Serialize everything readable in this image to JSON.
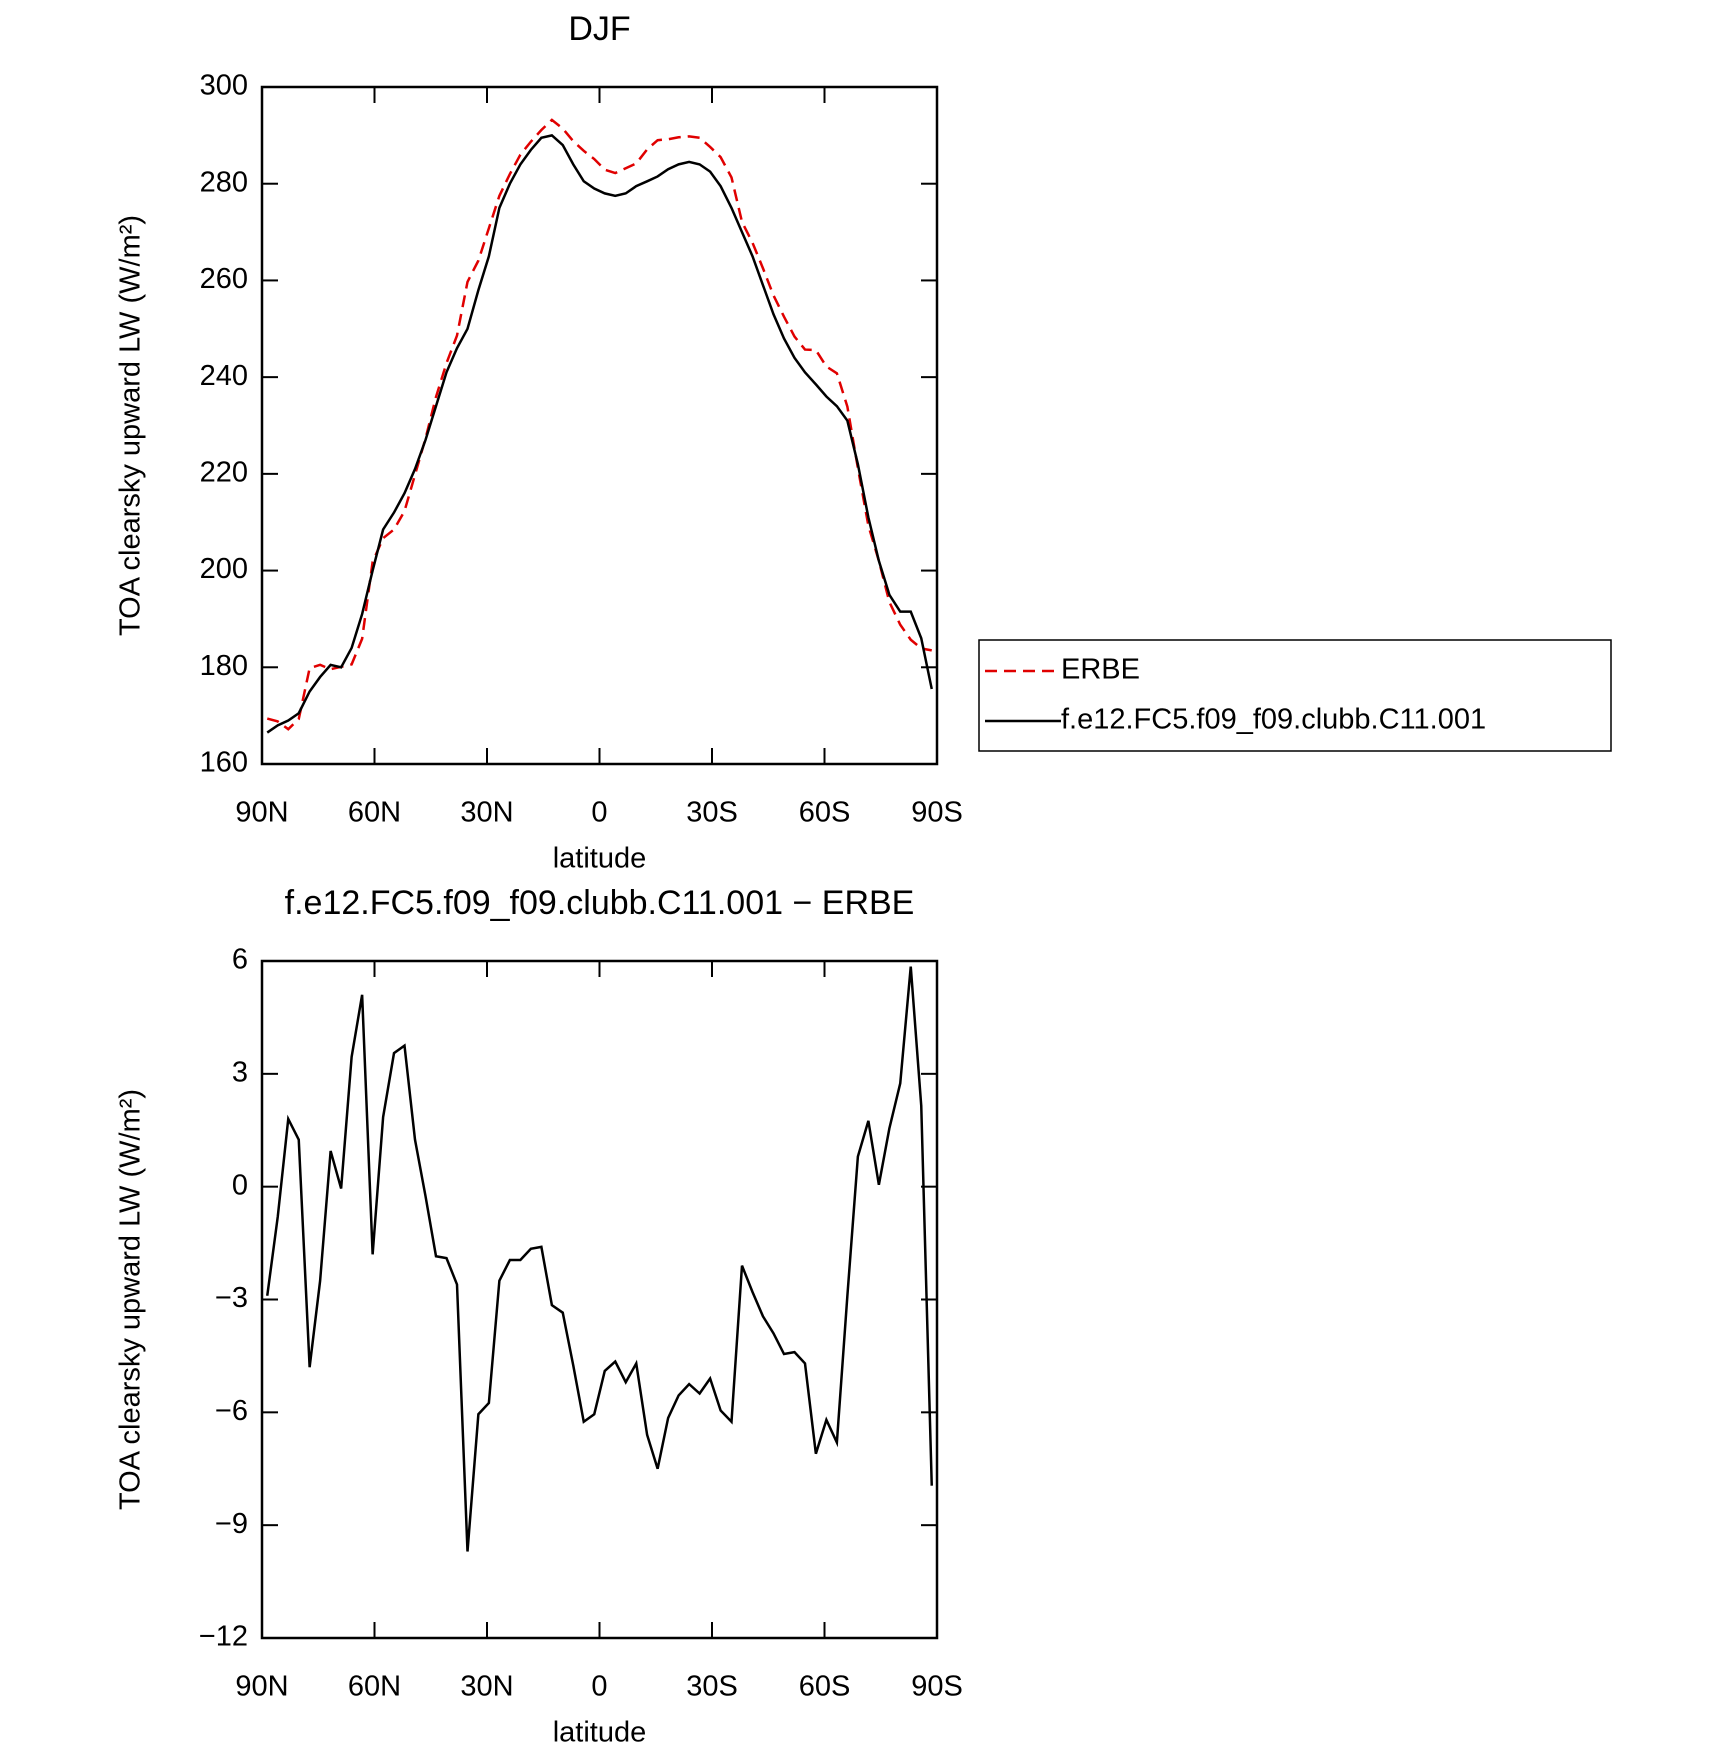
{
  "chart_data": [
    {
      "type": "line",
      "title": "DJF",
      "xlabel": "latitude",
      "ylabel": "TOA clearsky upward LW (W/m²)",
      "x": [
        88.6,
        85.8,
        83.0,
        80.2,
        77.3,
        74.5,
        71.7,
        68.9,
        66.1,
        63.3,
        60.5,
        57.7,
        54.8,
        52.0,
        49.2,
        46.4,
        43.6,
        40.8,
        38.0,
        35.2,
        32.3,
        29.5,
        26.7,
        23.9,
        21.1,
        18.3,
        15.5,
        12.7,
        9.8,
        7.0,
        4.2,
        1.4,
        -1.4,
        -4.2,
        -7.0,
        -9.8,
        -12.7,
        -15.5,
        -18.3,
        -21.1,
        -23.9,
        -26.7,
        -29.5,
        -32.3,
        -35.2,
        -38.0,
        -40.8,
        -43.6,
        -46.4,
        -49.2,
        -52.0,
        -54.8,
        -57.7,
        -60.5,
        -63.3,
        -66.1,
        -68.9,
        -71.7,
        -74.5,
        -77.3,
        -80.2,
        -83.0,
        -85.8,
        -88.6
      ],
      "series": [
        {
          "name": "ERBE",
          "color": "#e00000",
          "dash": true,
          "values": [
            169.4,
            168.8,
            167.2,
            169.3,
            179.8,
            180.5,
            179.6,
            180.1,
            180.6,
            185.9,
            201.8,
            206.7,
            208.5,
            212.3,
            219.8,
            227.3,
            235.9,
            242.9,
            248.6,
            259.7,
            264.1,
            270.8,
            277.5,
            282.0,
            286.0,
            288.7,
            291.1,
            293.2,
            291.4,
            288.8,
            286.8,
            285.1,
            282.9,
            282.2,
            283.2,
            284.2,
            287.1,
            289.0,
            289.2,
            289.6,
            289.8,
            289.5,
            287.6,
            285.5,
            281.3,
            272.1,
            267.8,
            262.5,
            256.9,
            252.5,
            248.4,
            245.7,
            245.6,
            242.2,
            240.8,
            233.9,
            221.2,
            209.3,
            202.0,
            193.5,
            188.8,
            185.7,
            183.9,
            183.5
          ]
        },
        {
          "name": "f.e12.FC5.f09_f09.clubb.C11.001",
          "color": "#000000",
          "dash": false,
          "values": [
            166.5,
            168,
            169,
            170.5,
            175,
            178,
            180.5,
            180,
            184,
            191,
            200,
            208.5,
            212,
            216,
            221,
            227,
            234,
            241,
            246,
            250,
            258,
            265,
            275,
            280,
            284,
            287,
            289.5,
            290,
            288,
            284,
            280.5,
            279,
            278,
            277.5,
            278,
            279.5,
            280.5,
            281.5,
            283,
            284,
            284.5,
            284,
            282.5,
            279.5,
            275,
            270,
            265,
            259,
            253,
            248,
            244,
            241,
            238.5,
            236,
            234,
            231,
            222,
            211,
            202,
            195,
            191.5,
            191.5,
            186,
            175.5
          ]
        }
      ],
      "xlim": [
        90,
        -90
      ],
      "xticks": [
        {
          "value": 90,
          "label": "90N"
        },
        {
          "value": 60,
          "label": "60N"
        },
        {
          "value": 30,
          "label": "30N"
        },
        0,
        {
          "value": -30,
          "label": "30S"
        },
        {
          "value": -60,
          "label": "60S"
        },
        {
          "value": -90,
          "label": "90S"
        }
      ],
      "ylim": [
        160,
        300
      ],
      "yticks": [
        160,
        180,
        200,
        220,
        240,
        260,
        280,
        300
      ],
      "legend": "right"
    },
    {
      "type": "line",
      "title": "f.e12.FC5.f09_f09.clubb.C11.001 − ERBE",
      "xlabel": "latitude",
      "ylabel": "TOA clearsky upward LW (W/m²)",
      "x": [
        88.6,
        85.8,
        83.0,
        80.2,
        77.3,
        74.5,
        71.7,
        68.9,
        66.1,
        63.3,
        60.5,
        57.7,
        54.8,
        52.0,
        49.2,
        46.4,
        43.6,
        40.8,
        38.0,
        35.2,
        32.3,
        29.5,
        26.7,
        23.9,
        21.1,
        18.3,
        15.5,
        12.7,
        9.8,
        7.0,
        4.2,
        1.4,
        -1.4,
        -4.2,
        -7.0,
        -9.8,
        -12.7,
        -15.5,
        -18.3,
        -21.1,
        -23.9,
        -26.7,
        -29.5,
        -32.3,
        -35.2,
        -38.0,
        -40.8,
        -43.6,
        -46.4,
        -49.2,
        -52.0,
        -54.8,
        -57.7,
        -60.5,
        -63.3,
        -66.1,
        -68.9,
        -71.7,
        -74.5,
        -77.3,
        -80.2,
        -83.0,
        -85.8,
        -88.6
      ],
      "color": "#000000",
      "values": [
        -2.9,
        -0.8,
        1.8,
        1.25,
        -4.8,
        -2.5,
        0.95,
        -0.05,
        3.45,
        5.1,
        -1.8,
        1.85,
        3.55,
        3.75,
        1.25,
        -0.25,
        -1.85,
        -1.9,
        -2.6,
        -9.7,
        -6.05,
        -5.75,
        -2.5,
        -1.95,
        -1.95,
        -1.65,
        -1.6,
        -3.15,
        -3.35,
        -4.75,
        -6.25,
        -6.05,
        -4.9,
        -4.65,
        -5.2,
        -4.7,
        -6.6,
        -7.5,
        -6.15,
        -5.55,
        -5.25,
        -5.5,
        -5.1,
        -5.95,
        -6.25,
        -2.1,
        -2.8,
        -3.45,
        -3.9,
        -4.45,
        -4.4,
        -4.7,
        -7.1,
        -6.2,
        -6.8,
        -2.9,
        0.8,
        1.75,
        0.05,
        1.55,
        2.75,
        5.85,
        2.15,
        -7.95
      ],
      "xlim": [
        90,
        -90
      ],
      "xticks": [
        {
          "value": 90,
          "label": "90N"
        },
        {
          "value": 60,
          "label": "60N"
        },
        {
          "value": 30,
          "label": "30N"
        },
        0,
        {
          "value": -30,
          "label": "30S"
        },
        {
          "value": -60,
          "label": "60S"
        },
        {
          "value": -90,
          "label": "90S"
        }
      ],
      "ylim": [
        -12,
        6
      ],
      "yticks": [
        6,
        3,
        0,
        {
          "value": -3,
          "label": "−3"
        },
        {
          "value": -6,
          "label": "−6"
        },
        {
          "value": -9,
          "label": "−9"
        },
        {
          "value": -12,
          "label": "−12"
        }
      ]
    }
  ]
}
